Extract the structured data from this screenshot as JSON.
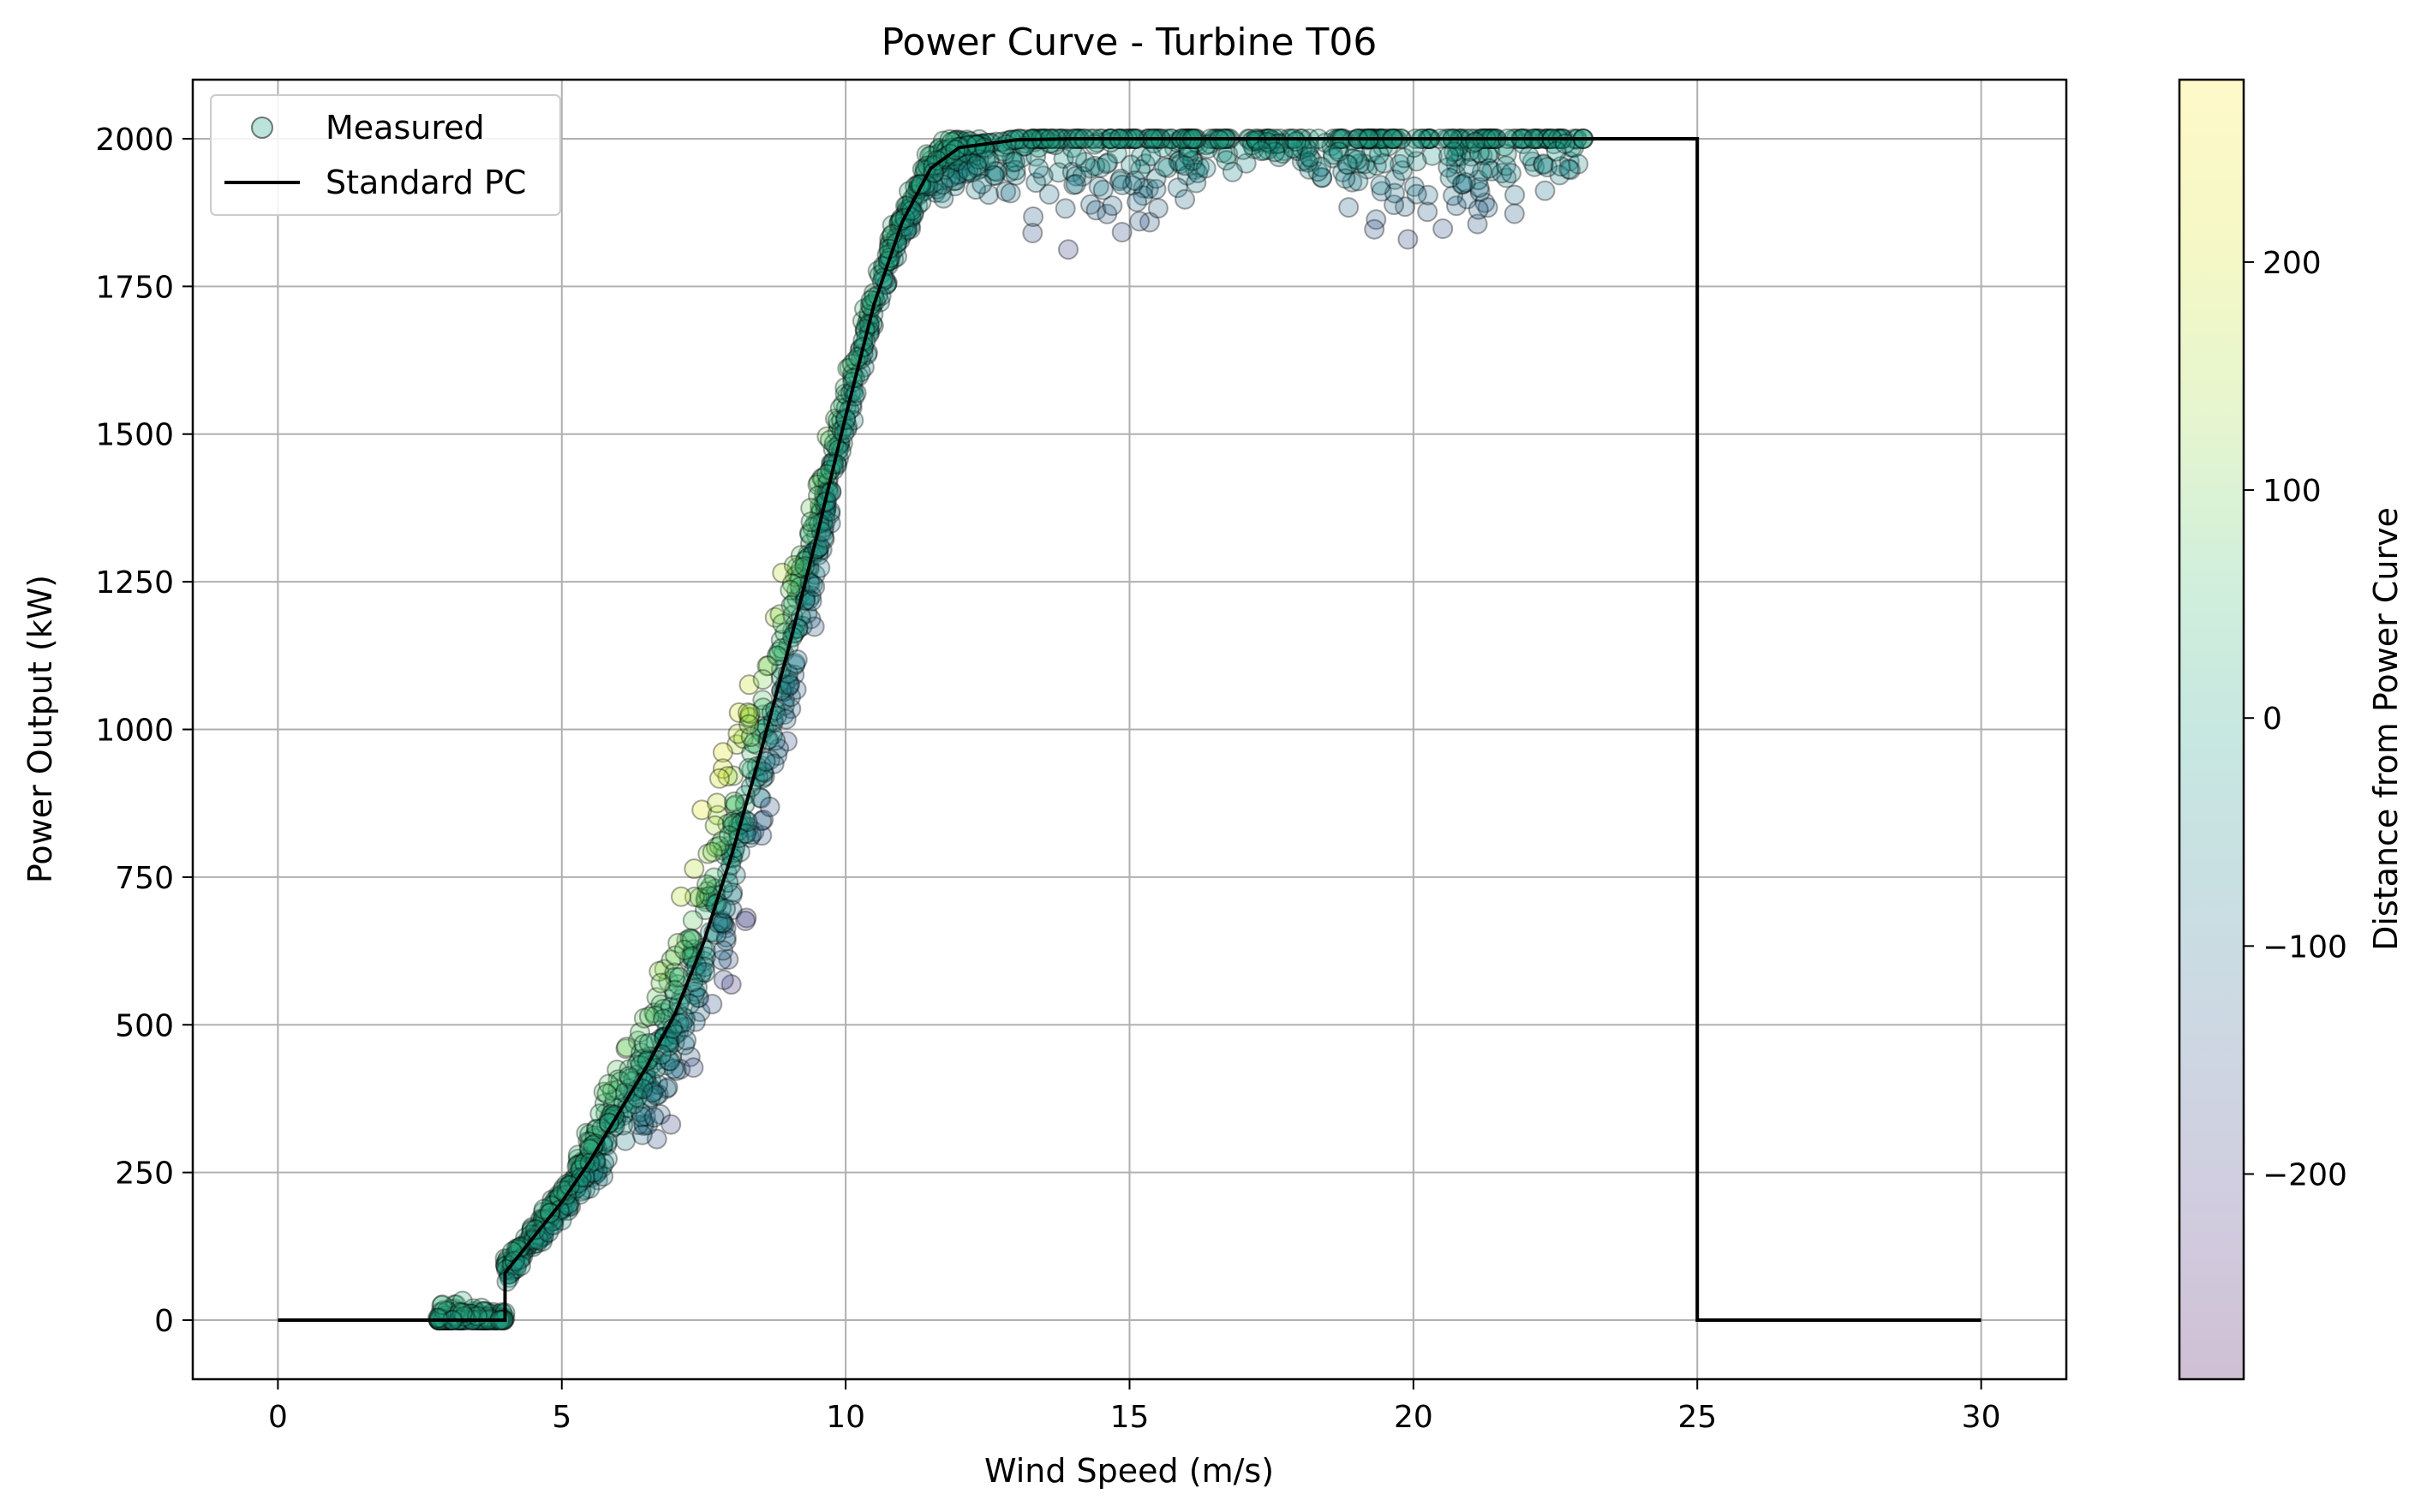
{
  "chart_data": {
    "type": "scatter",
    "title": "Power Curve - Turbine T06",
    "xlabel": "Wind Speed (m/s)",
    "ylabel": "Power Output (kW)",
    "xlim": [
      -1.5,
      31.5
    ],
    "ylim": [
      -100,
      2100
    ],
    "xticks": [
      0,
      5,
      10,
      15,
      20,
      25,
      30
    ],
    "yticks": [
      0,
      250,
      500,
      750,
      1000,
      1250,
      1500,
      1750,
      2000
    ],
    "grid": true,
    "legend": {
      "placement": "top-left",
      "entries": [
        "Measured",
        "Standard PC"
      ]
    },
    "colorbar": {
      "label": "Distance from Power Curve",
      "range": [
        -290,
        280
      ],
      "ticks": [
        -200,
        -100,
        0,
        100,
        200
      ],
      "colormap": "viridis",
      "alpha": 0.25
    },
    "series": [
      {
        "name": "Standard PC",
        "kind": "line",
        "color": "#000000",
        "x": [
          0,
          4,
          4,
          4.5,
          5,
          5.5,
          6,
          6.5,
          7,
          7.5,
          8,
          8.5,
          9,
          9.5,
          10,
          10.5,
          11,
          11.5,
          12,
          13,
          14,
          15,
          20,
          25,
          25,
          30
        ],
        "y": [
          0,
          0,
          80,
          140,
          200,
          270,
          350,
          430,
          520,
          640,
          790,
          960,
          1140,
          1330,
          1530,
          1720,
          1860,
          1950,
          1985,
          1998,
          2000,
          2000,
          2000,
          2000,
          0,
          0
        ]
      },
      {
        "name": "Measured",
        "kind": "scatter",
        "marker": "circle",
        "edgecolor": "#000000",
        "x_range": [
          2.8,
          23.0
        ],
        "rated_kw": 2000,
        "spread_kw": 260
      }
    ]
  }
}
